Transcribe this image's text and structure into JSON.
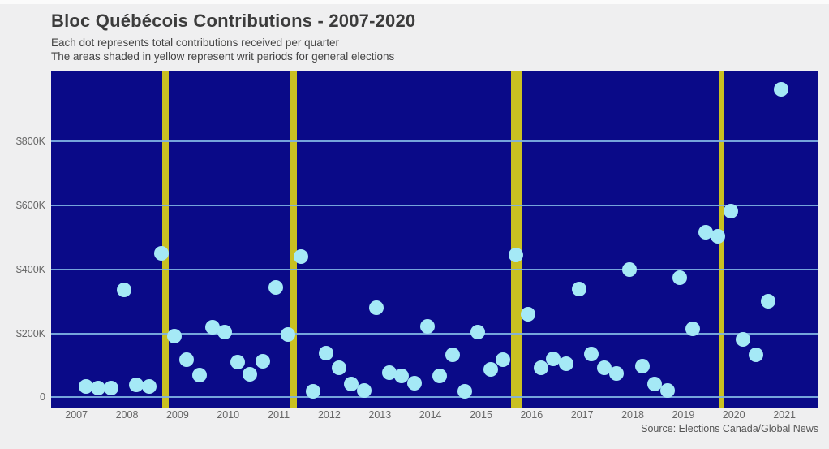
{
  "chart_data": {
    "type": "scatter",
    "title": "Bloc Québécois Contributions - 2007-2020",
    "subtitle_line1": "Each dot represents total contributions received per quarter",
    "subtitle_line2": "The areas shaded in yellow represent writ periods for general elections",
    "source": "Source: Elections Canada/Global News",
    "unit": "CAD thousands per quarter",
    "y_axis": {
      "ticks": [
        {
          "label": "$800K",
          "value": 800
        },
        {
          "label": "$600K",
          "value": 600
        },
        {
          "label": "$400K",
          "value": 400
        },
        {
          "label": "$200K",
          "value": 200
        },
        {
          "label": "0",
          "value": 0
        }
      ],
      "range_k": [
        0,
        1050
      ],
      "grid": "horizontal-only"
    },
    "x_axis": {
      "year_labels": [
        "2007",
        "2008",
        "2009",
        "2010",
        "2011",
        "2012",
        "2013",
        "2014",
        "2015",
        "2016",
        "2017",
        "2018",
        "2019",
        "2020",
        "2021"
      ],
      "range_years": [
        2006.5,
        2021.66
      ]
    },
    "series": [
      {
        "name": "Total contributions received per quarter",
        "points": [
          [
            "2007 Q1",
            34
          ],
          [
            "2007 Q2",
            28
          ],
          [
            "2007 Q3",
            29
          ],
          [
            "2007 Q4",
            335
          ],
          [
            "2008 Q1",
            38
          ],
          [
            "2008 Q2",
            34
          ],
          [
            "2008 Q3",
            449
          ],
          [
            "2008 Q4",
            192
          ],
          [
            "2009 Q1",
            118
          ],
          [
            "2009 Q2",
            70
          ],
          [
            "2009 Q3",
            220
          ],
          [
            "2009 Q4",
            205
          ],
          [
            "2010 Q1",
            110
          ],
          [
            "2010 Q2",
            72
          ],
          [
            "2010 Q3",
            112
          ],
          [
            "2010 Q4",
            344
          ],
          [
            "2011 Q1",
            195
          ],
          [
            "2011 Q2",
            439
          ],
          [
            "2011 Q3",
            19
          ],
          [
            "2011 Q4",
            138
          ],
          [
            "2012 Q1",
            91
          ],
          [
            "2012 Q2",
            41
          ],
          [
            "2012 Q3",
            22
          ],
          [
            "2012 Q4",
            280
          ],
          [
            "2013 Q1",
            77
          ],
          [
            "2013 Q2",
            68
          ],
          [
            "2013 Q3",
            45
          ],
          [
            "2013 Q4",
            222
          ],
          [
            "2014 Q1",
            67
          ],
          [
            "2014 Q2",
            132
          ],
          [
            "2014 Q3",
            19
          ],
          [
            "2014 Q4",
            205
          ],
          [
            "2015 Q1",
            87
          ],
          [
            "2015 Q2",
            117
          ],
          [
            "2015 Q3",
            446
          ],
          [
            "2015 Q4",
            259
          ],
          [
            "2016 Q1",
            93
          ],
          [
            "2016 Q2",
            119
          ],
          [
            "2016 Q3",
            104
          ],
          [
            "2016 Q4",
            339
          ],
          [
            "2017 Q1",
            136
          ],
          [
            "2017 Q2",
            93
          ],
          [
            "2017 Q3",
            74
          ],
          [
            "2017 Q4",
            400
          ],
          [
            "2018 Q1",
            97
          ],
          [
            "2018 Q2",
            41
          ],
          [
            "2018 Q3",
            22
          ],
          [
            "2018 Q4",
            373
          ],
          [
            "2019 Q1",
            214
          ],
          [
            "2019 Q2",
            515
          ],
          [
            "2019 Q3",
            503
          ],
          [
            "2019 Q4",
            583
          ],
          [
            "2020 Q1",
            182
          ],
          [
            "2020 Q2",
            133
          ],
          [
            "2020 Q3",
            300
          ],
          [
            "2020 Q4",
            963
          ]
        ]
      }
    ],
    "writ_periods": [
      {
        "start_year": 2008.7,
        "end_year": 2008.82
      },
      {
        "start_year": 2011.23,
        "end_year": 2011.36
      },
      {
        "start_year": 2015.59,
        "end_year": 2015.8
      },
      {
        "start_year": 2019.7,
        "end_year": 2019.81
      }
    ],
    "colors": {
      "page_bg": "#efeff0",
      "plot_bg": "#0a0a88",
      "dot": "#a5e9f6",
      "writ_band": "#c9c021",
      "gridline": "#7fb2e2",
      "title_text": "#3c3c3c",
      "axis_text": "#666666"
    },
    "legend": "none"
  }
}
